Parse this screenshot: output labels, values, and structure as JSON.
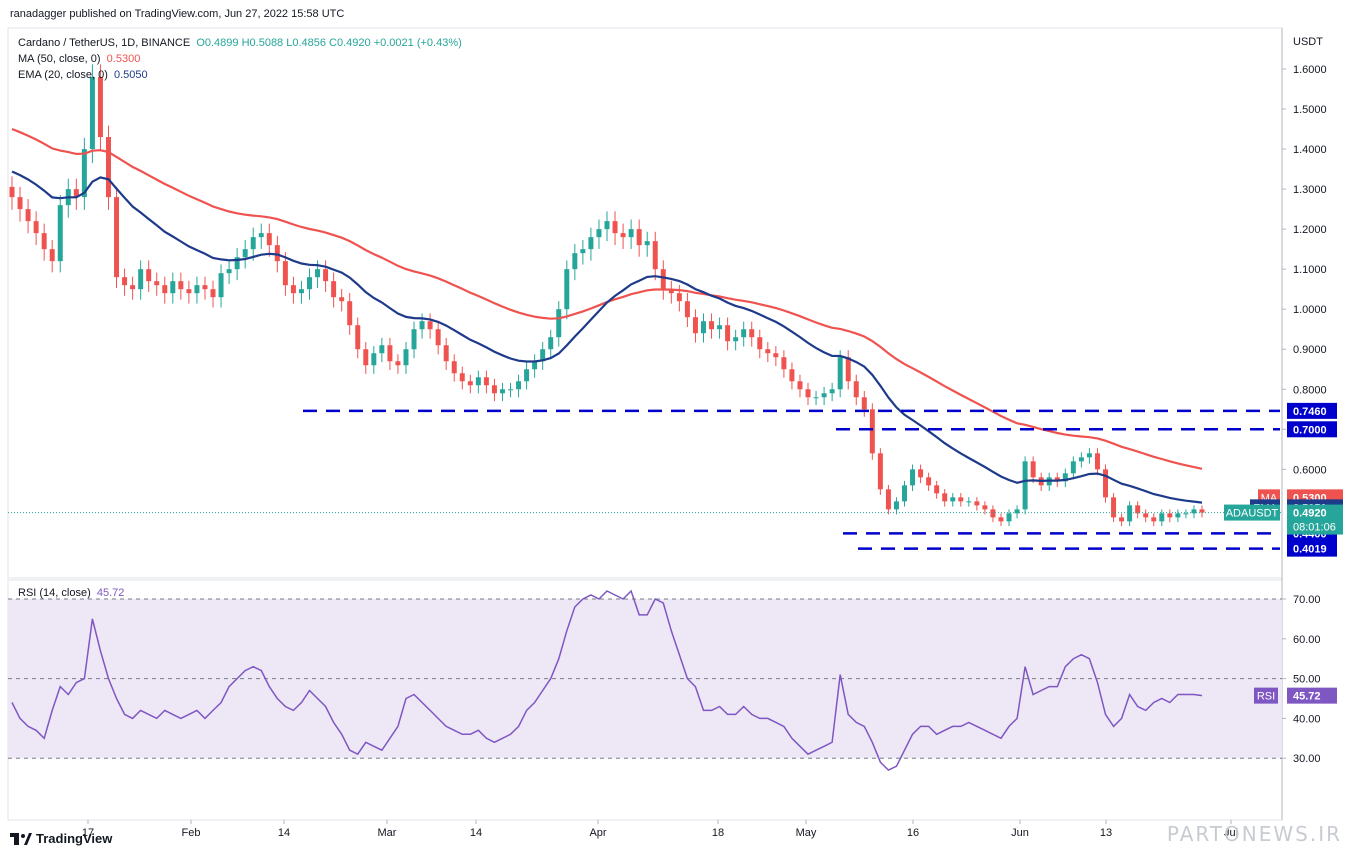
{
  "header": {
    "author_line": "ranadagger published on TradingView.com, Jun 27, 2022 15:58 UTC"
  },
  "legend": {
    "symbol": "Cardano / TetherUS, 1D, BINANCE",
    "ohlc": "O0.4899 H0.5088 L0.4856 C0.4920 +0.0021 (+0.43%)",
    "ma_label": "MA (50, close, 0)",
    "ma_value": "0.5300",
    "ema_label": "EMA (20, close, 0)",
    "ema_value": "0.5050",
    "rsi_label": "RSI (14, close)",
    "rsi_value": "45.72"
  },
  "footer": {
    "brand": "TradingView",
    "watermark": "PARTONEWS.IR"
  },
  "colors": {
    "up": "#26a69a",
    "down": "#ef5350",
    "ma": "#ef5350",
    "ema": "#1e3a8a",
    "level": "#0000cc",
    "rsi": "#7e57c2",
    "rsi_band": "#ede7f6"
  },
  "chart_data": [
    {
      "type": "candlestick",
      "title": "Cardano / TetherUS, 1D, BINANCE",
      "currency_label": "USDT",
      "ylim": [
        0.355,
        1.69
      ],
      "y_ticks": [
        "1.6000",
        "1.5000",
        "1.4000",
        "1.3000",
        "1.2000",
        "1.1000",
        "1.0000",
        "0.9000",
        "0.8000",
        "0.7000",
        "0.6000"
      ],
      "x_ticks": [
        "17",
        "Feb",
        "14",
        "Mar",
        "14",
        "Apr",
        "18",
        "May",
        "16",
        "Jun",
        "13",
        "Jul"
      ],
      "close_series": [
        1.28,
        1.25,
        1.22,
        1.19,
        1.15,
        1.12,
        1.26,
        1.3,
        1.28,
        1.4,
        1.58,
        1.43,
        1.28,
        1.08,
        1.06,
        1.05,
        1.1,
        1.07,
        1.06,
        1.04,
        1.07,
        1.05,
        1.04,
        1.06,
        1.05,
        1.03,
        1.09,
        1.1,
        1.13,
        1.15,
        1.18,
        1.19,
        1.16,
        1.12,
        1.06,
        1.04,
        1.05,
        1.08,
        1.1,
        1.07,
        1.03,
        1.02,
        0.96,
        0.9,
        0.86,
        0.89,
        0.91,
        0.87,
        0.86,
        0.9,
        0.95,
        0.97,
        0.95,
        0.91,
        0.87,
        0.84,
        0.82,
        0.81,
        0.83,
        0.81,
        0.79,
        0.8,
        0.8,
        0.82,
        0.85,
        0.87,
        0.9,
        0.93,
        1.0,
        1.1,
        1.14,
        1.15,
        1.18,
        1.2,
        1.22,
        1.19,
        1.18,
        1.2,
        1.16,
        1.17,
        1.1,
        1.05,
        1.04,
        1.02,
        0.98,
        0.94,
        0.97,
        0.95,
        0.96,
        0.92,
        0.93,
        0.95,
        0.93,
        0.9,
        0.89,
        0.88,
        0.85,
        0.82,
        0.8,
        0.78,
        0.78,
        0.79,
        0.8,
        0.88,
        0.82,
        0.78,
        0.75,
        0.64,
        0.55,
        0.5,
        0.52,
        0.56,
        0.6,
        0.58,
        0.56,
        0.54,
        0.52,
        0.53,
        0.52,
        0.52,
        0.51,
        0.5,
        0.48,
        0.47,
        0.49,
        0.5,
        0.62,
        0.58,
        0.56,
        0.58,
        0.57,
        0.59,
        0.62,
        0.63,
        0.64,
        0.6,
        0.53,
        0.48,
        0.47,
        0.51,
        0.49,
        0.48,
        0.47,
        0.49,
        0.48,
        0.49,
        0.49,
        0.5,
        0.492
      ],
      "series": [
        {
          "name": "MA (50, close, 0)",
          "last": 0.53
        },
        {
          "name": "EMA (20, close, 0)",
          "last": 0.505
        }
      ],
      "price_labels": [
        {
          "tag": "MA",
          "value": "0.5300"
        },
        {
          "tag": "EMA",
          "value": "0.5050"
        },
        {
          "tag": "ADAUSDT",
          "value": "0.4920",
          "sub": "08:01:06"
        }
      ],
      "horizontal_levels": [
        {
          "value": 0.746,
          "label": "0.7460"
        },
        {
          "value": 0.7,
          "label": "0.7000"
        },
        {
          "value": 0.44,
          "label": "0.4400"
        },
        {
          "value": 0.4019,
          "label": "0.4019"
        }
      ]
    },
    {
      "type": "line",
      "title": "RSI (14, close)",
      "ylim": [
        20,
        76
      ],
      "y_ticks": [
        "70.00",
        "60.00",
        "50.00",
        "40.00",
        "30.00"
      ],
      "bands": [
        30,
        50,
        70
      ],
      "last_label": "45.72",
      "values": [
        44,
        40,
        38,
        37,
        35,
        42,
        48,
        46,
        49,
        50,
        65,
        57,
        50,
        45,
        41,
        40,
        42,
        41,
        40,
        42,
        41,
        40,
        41,
        42,
        40,
        42,
        44,
        48,
        50,
        52,
        53,
        52,
        48,
        45,
        43,
        42,
        44,
        47,
        45,
        43,
        39,
        36,
        32,
        31,
        34,
        33,
        32,
        35,
        38,
        45,
        46,
        44,
        42,
        40,
        38,
        37,
        36,
        36,
        37,
        35,
        34,
        35,
        36,
        38,
        42,
        44,
        47,
        50,
        55,
        62,
        68,
        70,
        71,
        70,
        72,
        71,
        70,
        72,
        66,
        66,
        70,
        69,
        62,
        56,
        50,
        48,
        42,
        42,
        43,
        41,
        41,
        43,
        41,
        40,
        40,
        39,
        38,
        35,
        33,
        31,
        32,
        33,
        34,
        51,
        41,
        39,
        38,
        34,
        29,
        27,
        28,
        32,
        36,
        38,
        38,
        36,
        37,
        38,
        38,
        39,
        38,
        37,
        36,
        35,
        38,
        40,
        53,
        46,
        47,
        48,
        48,
        53,
        55,
        56,
        55,
        49,
        41,
        38,
        40,
        46,
        43,
        42,
        44,
        45,
        44,
        46,
        46,
        46,
        45.72
      ]
    }
  ]
}
